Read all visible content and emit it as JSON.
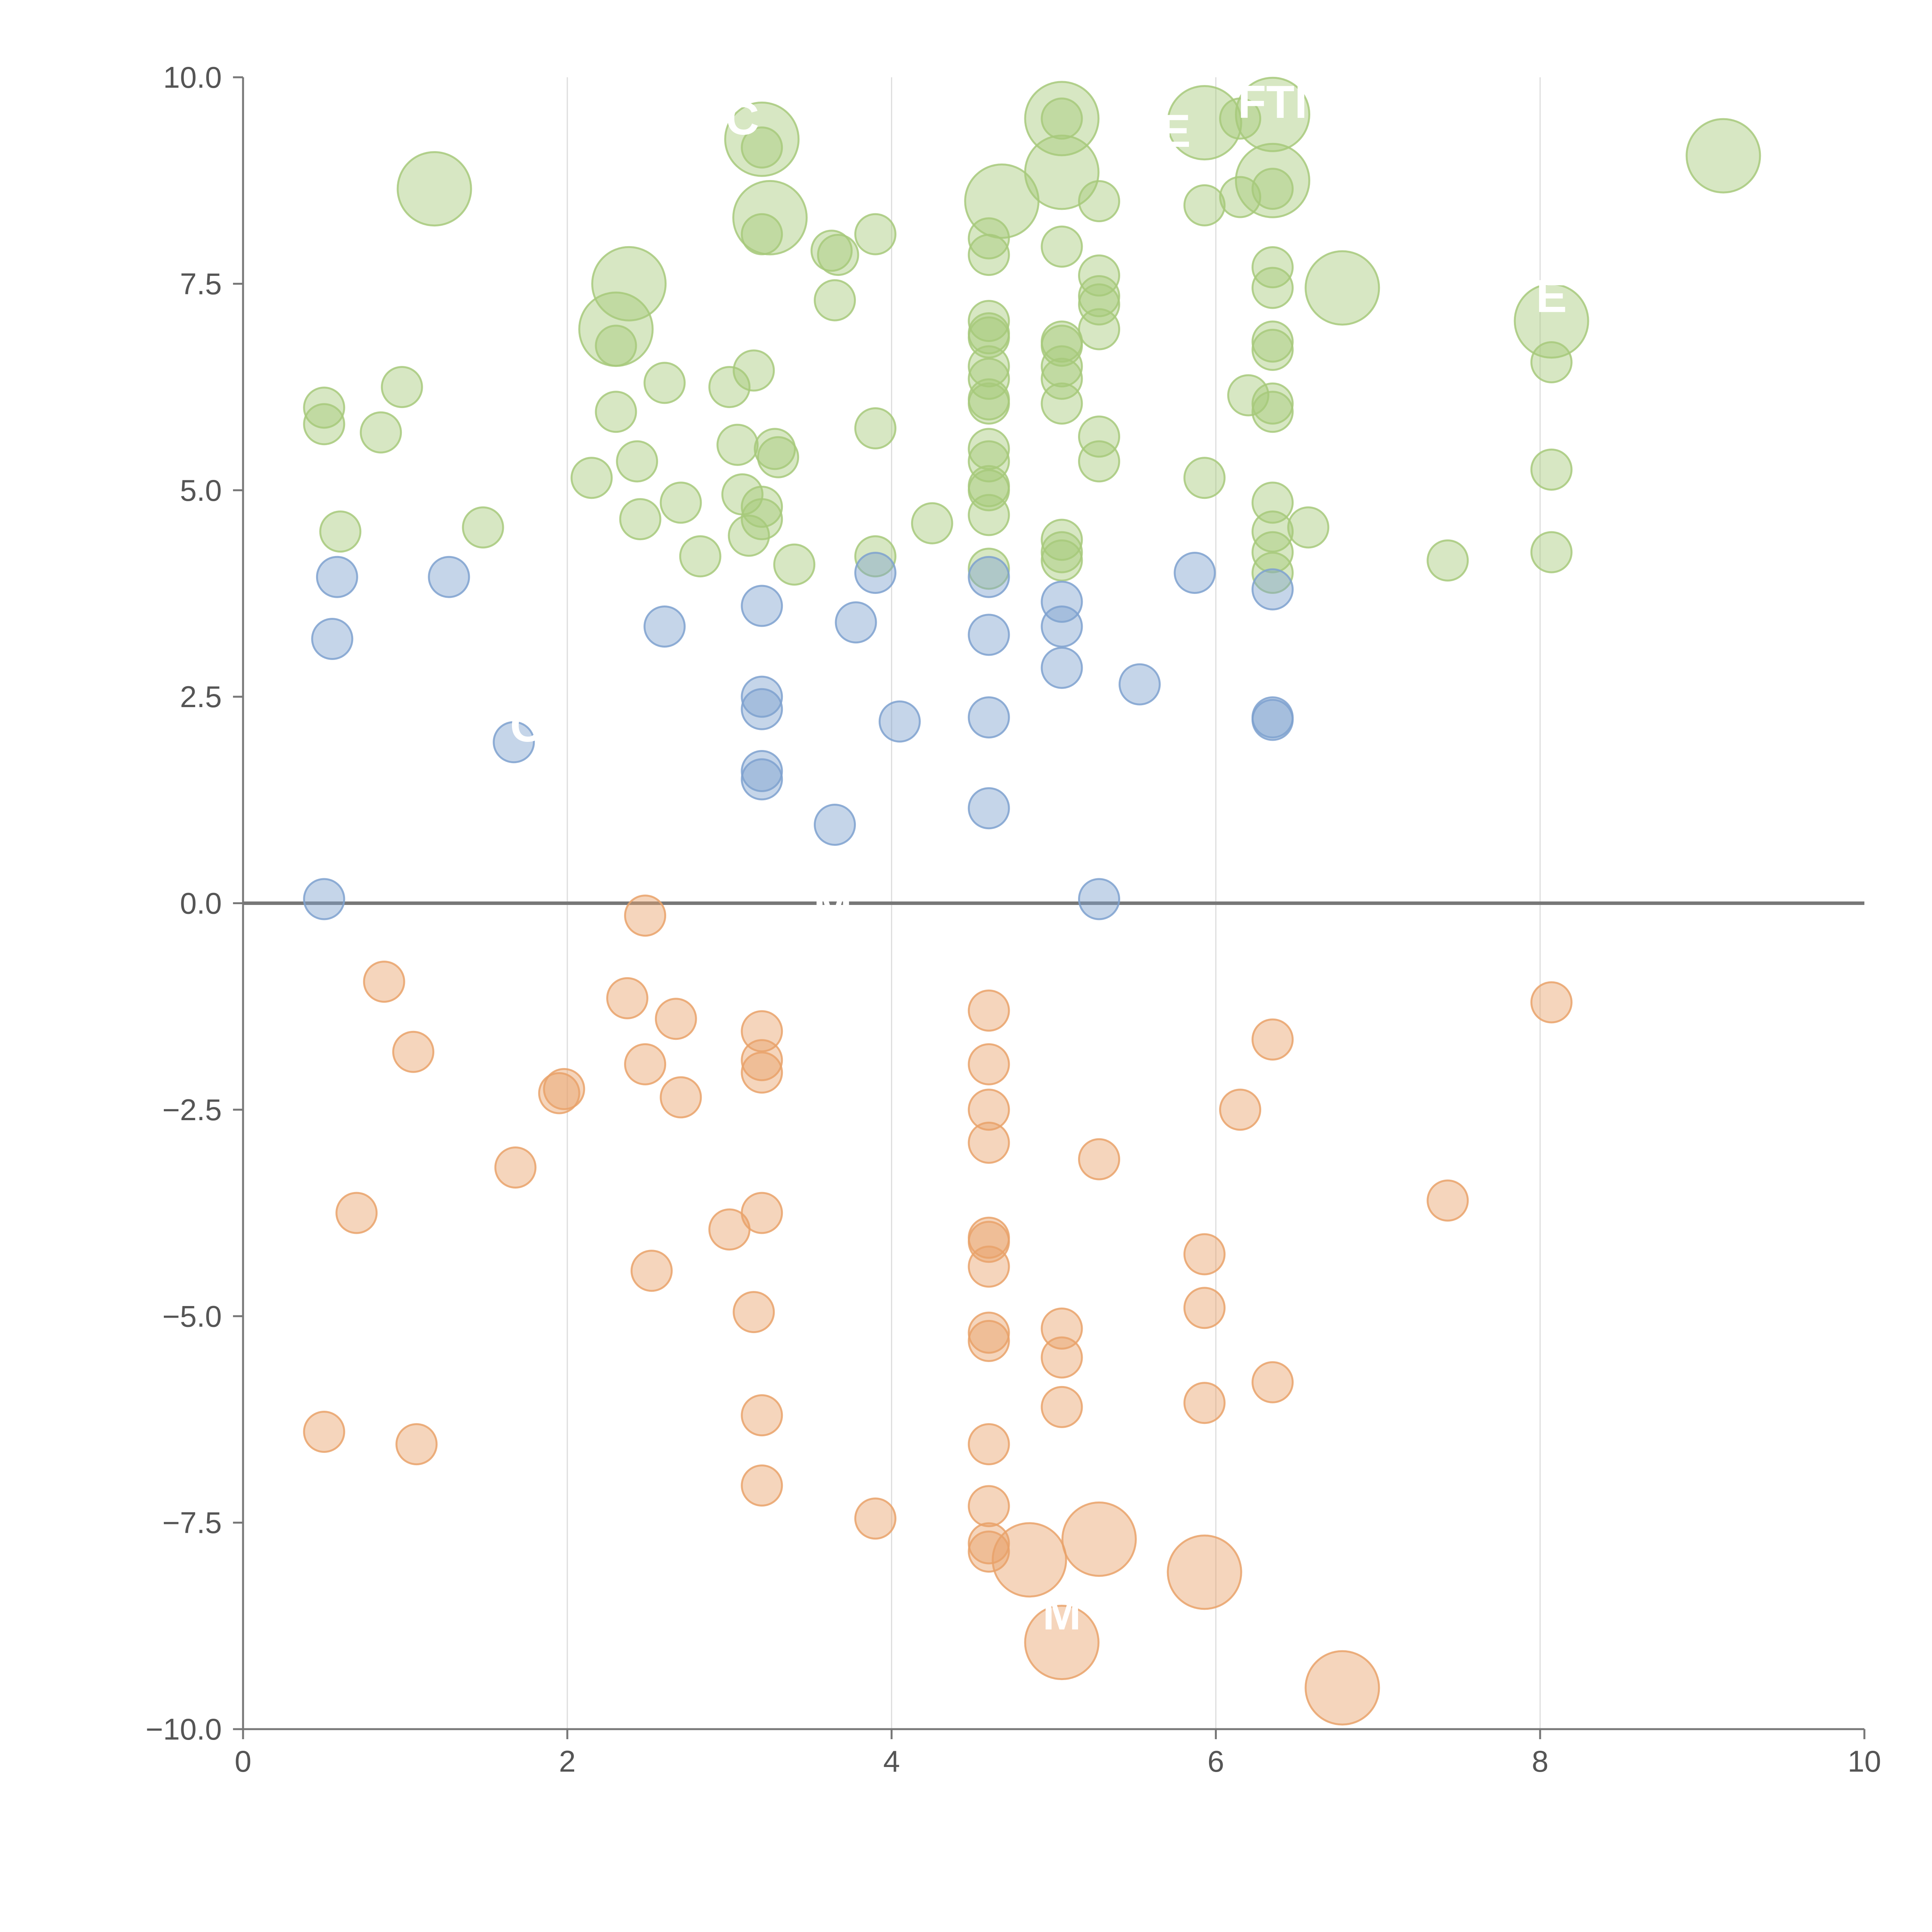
{
  "chart_data": {
    "type": "scatter",
    "title": "",
    "xlabel": "",
    "ylabel": "",
    "xlim": [
      0,
      10
    ],
    "ylim": [
      -10,
      10
    ],
    "x_ticks": [
      0,
      2,
      4,
      6,
      8,
      10
    ],
    "x_tick_labels": [
      "0",
      "2",
      "4",
      "6",
      "8",
      "10"
    ],
    "y_ticks": [
      -10,
      -7.5,
      -5,
      -2.5,
      0,
      2.5,
      5,
      7.5,
      10
    ],
    "y_tick_labels": [
      "−10.0",
      "−7.5",
      "−5.0",
      "−2.5",
      "0.0",
      "2.5",
      "5.0",
      "7.5",
      "10.0"
    ],
    "grid": "vertical",
    "reference_line_y": 0,
    "legend": "none",
    "colors": {
      "positive_high": "#a7c97b",
      "positive_low": "#7ea1cf",
      "negative": "#e9a26a",
      "axis": "#777777",
      "grid": "#dddddd",
      "zero_line": "#777777"
    },
    "series": [
      {
        "name": "green",
        "color": "#a7c97b",
        "points": [
          {
            "x": 0.5,
            "y": 6.0,
            "s": 1
          },
          {
            "x": 0.5,
            "y": 5.8,
            "s": 1
          },
          {
            "x": 0.6,
            "y": 4.5,
            "s": 1
          },
          {
            "x": 0.85,
            "y": 5.7,
            "s": 1
          },
          {
            "x": 0.98,
            "y": 6.25,
            "s": 1
          },
          {
            "x": 1.18,
            "y": 8.65,
            "s": 2
          },
          {
            "x": 1.48,
            "y": 4.55,
            "s": 1
          },
          {
            "x": 2.15,
            "y": 5.15,
            "s": 1
          },
          {
            "x": 2.3,
            "y": 6.95,
            "s": 2
          },
          {
            "x": 2.3,
            "y": 6.75,
            "s": 1
          },
          {
            "x": 2.3,
            "y": 5.95,
            "s": 1
          },
          {
            "x": 2.38,
            "y": 7.5,
            "s": 2
          },
          {
            "x": 2.43,
            "y": 5.35,
            "s": 1
          },
          {
            "x": 2.45,
            "y": 4.65,
            "s": 1
          },
          {
            "x": 2.6,
            "y": 6.3,
            "s": 1
          },
          {
            "x": 2.7,
            "y": 4.85,
            "s": 1
          },
          {
            "x": 2.82,
            "y": 4.2,
            "s": 1
          },
          {
            "x": 3.0,
            "y": 6.25,
            "s": 1
          },
          {
            "x": 3.05,
            "y": 5.55,
            "s": 1
          },
          {
            "x": 3.08,
            "y": 4.95,
            "s": 1
          },
          {
            "x": 3.12,
            "y": 4.45,
            "s": 1
          },
          {
            "x": 3.15,
            "y": 6.45,
            "s": 1
          },
          {
            "x": 3.2,
            "y": 9.25,
            "s": 2
          },
          {
            "x": 3.2,
            "y": 9.15,
            "s": 1
          },
          {
            "x": 3.2,
            "y": 8.1,
            "s": 1
          },
          {
            "x": 3.2,
            "y": 4.8,
            "s": 1
          },
          {
            "x": 3.2,
            "y": 4.65,
            "s": 1
          },
          {
            "x": 3.25,
            "y": 8.3,
            "s": 2
          },
          {
            "x": 3.28,
            "y": 5.5,
            "s": 1
          },
          {
            "x": 3.3,
            "y": 5.4,
            "s": 1
          },
          {
            "x": 3.4,
            "y": 4.1,
            "s": 1
          },
          {
            "x": 3.63,
            "y": 7.9,
            "s": 1
          },
          {
            "x": 3.65,
            "y": 7.3,
            "s": 1
          },
          {
            "x": 3.67,
            "y": 7.85,
            "s": 1
          },
          {
            "x": 3.9,
            "y": 8.1,
            "s": 1
          },
          {
            "x": 3.9,
            "y": 5.75,
            "s": 1
          },
          {
            "x": 3.9,
            "y": 4.2,
            "s": 1
          },
          {
            "x": 4.25,
            "y": 4.6,
            "s": 1
          },
          {
            "x": 4.6,
            "y": 8.05,
            "s": 1
          },
          {
            "x": 4.6,
            "y": 7.85,
            "s": 1
          },
          {
            "x": 4.6,
            "y": 7.05,
            "s": 1
          },
          {
            "x": 4.6,
            "y": 6.9,
            "s": 1
          },
          {
            "x": 4.6,
            "y": 6.85,
            "s": 1
          },
          {
            "x": 4.6,
            "y": 6.5,
            "s": 1
          },
          {
            "x": 4.6,
            "y": 6.35,
            "s": 1
          },
          {
            "x": 4.6,
            "y": 6.1,
            "s": 1
          },
          {
            "x": 4.6,
            "y": 6.05,
            "s": 1
          },
          {
            "x": 4.6,
            "y": 5.5,
            "s": 1
          },
          {
            "x": 4.6,
            "y": 5.35,
            "s": 1
          },
          {
            "x": 4.6,
            "y": 5.05,
            "s": 1
          },
          {
            "x": 4.6,
            "y": 5.0,
            "s": 1
          },
          {
            "x": 4.6,
            "y": 4.7,
            "s": 1
          },
          {
            "x": 4.6,
            "y": 4.05,
            "s": 1
          },
          {
            "x": 4.68,
            "y": 8.5,
            "s": 2
          },
          {
            "x": 5.05,
            "y": 9.5,
            "s": 2
          },
          {
            "x": 5.05,
            "y": 9.5,
            "s": 1
          },
          {
            "x": 5.05,
            "y": 8.85,
            "s": 2
          },
          {
            "x": 5.05,
            "y": 7.95,
            "s": 1
          },
          {
            "x": 5.05,
            "y": 6.8,
            "s": 1
          },
          {
            "x": 5.05,
            "y": 6.75,
            "s": 1
          },
          {
            "x": 5.05,
            "y": 6.5,
            "s": 1
          },
          {
            "x": 5.05,
            "y": 6.35,
            "s": 1
          },
          {
            "x": 5.05,
            "y": 6.05,
            "s": 1
          },
          {
            "x": 5.05,
            "y": 4.4,
            "s": 1
          },
          {
            "x": 5.05,
            "y": 4.25,
            "s": 1
          },
          {
            "x": 5.05,
            "y": 4.15,
            "s": 1
          },
          {
            "x": 5.28,
            "y": 8.5,
            "s": 1
          },
          {
            "x": 5.28,
            "y": 7.6,
            "s": 1
          },
          {
            "x": 5.28,
            "y": 7.35,
            "s": 1
          },
          {
            "x": 5.28,
            "y": 7.25,
            "s": 1
          },
          {
            "x": 5.28,
            "y": 6.95,
            "s": 1
          },
          {
            "x": 5.28,
            "y": 5.65,
            "s": 1
          },
          {
            "x": 5.28,
            "y": 5.35,
            "s": 1
          },
          {
            "x": 5.93,
            "y": 9.45,
            "s": 2
          },
          {
            "x": 5.93,
            "y": 8.45,
            "s": 1
          },
          {
            "x": 5.93,
            "y": 5.15,
            "s": 1
          },
          {
            "x": 6.15,
            "y": 9.5,
            "s": 1
          },
          {
            "x": 6.15,
            "y": 8.55,
            "s": 1
          },
          {
            "x": 6.2,
            "y": 6.15,
            "s": 1
          },
          {
            "x": 6.35,
            "y": 9.55,
            "s": 2
          },
          {
            "x": 6.35,
            "y": 8.75,
            "s": 2
          },
          {
            "x": 6.35,
            "y": 8.65,
            "s": 1
          },
          {
            "x": 6.35,
            "y": 7.7,
            "s": 1
          },
          {
            "x": 6.35,
            "y": 7.45,
            "s": 1
          },
          {
            "x": 6.35,
            "y": 6.8,
            "s": 1
          },
          {
            "x": 6.35,
            "y": 6.7,
            "s": 1
          },
          {
            "x": 6.35,
            "y": 6.05,
            "s": 1
          },
          {
            "x": 6.35,
            "y": 5.95,
            "s": 1
          },
          {
            "x": 6.35,
            "y": 4.85,
            "s": 1
          },
          {
            "x": 6.35,
            "y": 4.5,
            "s": 1
          },
          {
            "x": 6.35,
            "y": 4.25,
            "s": 1
          },
          {
            "x": 6.35,
            "y": 4.0,
            "s": 1
          },
          {
            "x": 6.57,
            "y": 4.55,
            "s": 1
          },
          {
            "x": 6.78,
            "y": 7.45,
            "s": 2
          },
          {
            "x": 7.43,
            "y": 4.15,
            "s": 1
          },
          {
            "x": 8.07,
            "y": 7.05,
            "s": 2
          },
          {
            "x": 8.07,
            "y": 6.55,
            "s": 1
          },
          {
            "x": 8.07,
            "y": 5.25,
            "s": 1
          },
          {
            "x": 8.07,
            "y": 4.25,
            "s": 1
          },
          {
            "x": 9.13,
            "y": 9.05,
            "s": 2
          }
        ]
      },
      {
        "name": "blue",
        "color": "#7ea1cf",
        "points": [
          {
            "x": 0.5,
            "y": 0.05,
            "s": 1
          },
          {
            "x": 0.55,
            "y": 3.2,
            "s": 1
          },
          {
            "x": 0.58,
            "y": 3.95,
            "s": 1
          },
          {
            "x": 1.27,
            "y": 3.95,
            "s": 1
          },
          {
            "x": 1.67,
            "y": 1.95,
            "s": 1
          },
          {
            "x": 2.6,
            "y": 3.35,
            "s": 1
          },
          {
            "x": 3.2,
            "y": 3.6,
            "s": 1
          },
          {
            "x": 3.2,
            "y": 2.5,
            "s": 1
          },
          {
            "x": 3.2,
            "y": 2.35,
            "s": 1
          },
          {
            "x": 3.2,
            "y": 1.6,
            "s": 1
          },
          {
            "x": 3.2,
            "y": 1.5,
            "s": 1
          },
          {
            "x": 3.65,
            "y": 0.95,
            "s": 1
          },
          {
            "x": 3.78,
            "y": 3.4,
            "s": 1
          },
          {
            "x": 3.9,
            "y": 4.0,
            "s": 1
          },
          {
            "x": 4.05,
            "y": 2.2,
            "s": 1
          },
          {
            "x": 4.6,
            "y": 3.95,
            "s": 1
          },
          {
            "x": 4.6,
            "y": 3.25,
            "s": 1
          },
          {
            "x": 4.6,
            "y": 2.25,
            "s": 1
          },
          {
            "x": 4.6,
            "y": 1.15,
            "s": 1
          },
          {
            "x": 5.05,
            "y": 3.65,
            "s": 1
          },
          {
            "x": 5.05,
            "y": 3.35,
            "s": 1
          },
          {
            "x": 5.05,
            "y": 2.85,
            "s": 1
          },
          {
            "x": 5.28,
            "y": 0.05,
            "s": 1
          },
          {
            "x": 5.53,
            "y": 2.65,
            "s": 1
          },
          {
            "x": 5.87,
            "y": 4.0,
            "s": 1
          },
          {
            "x": 6.35,
            "y": 3.8,
            "s": 1
          },
          {
            "x": 6.35,
            "y": 2.25,
            "s": 1
          },
          {
            "x": 6.35,
            "y": 2.22,
            "s": 1
          }
        ]
      },
      {
        "name": "orange",
        "color": "#e9a26a",
        "points": [
          {
            "x": 0.5,
            "y": -6.4,
            "s": 1
          },
          {
            "x": 0.7,
            "y": -3.75,
            "s": 1
          },
          {
            "x": 0.87,
            "y": -0.95,
            "s": 1
          },
          {
            "x": 1.05,
            "y": -1.8,
            "s": 1
          },
          {
            "x": 1.07,
            "y": -6.55,
            "s": 1
          },
          {
            "x": 1.68,
            "y": -3.2,
            "s": 1
          },
          {
            "x": 1.95,
            "y": -2.3,
            "s": 1
          },
          {
            "x": 1.98,
            "y": -2.25,
            "s": 1
          },
          {
            "x": 2.37,
            "y": -1.15,
            "s": 1
          },
          {
            "x": 2.48,
            "y": -1.95,
            "s": 1
          },
          {
            "x": 2.48,
            "y": -0.15,
            "s": 1
          },
          {
            "x": 2.52,
            "y": -4.45,
            "s": 1
          },
          {
            "x": 2.67,
            "y": -1.4,
            "s": 1
          },
          {
            "x": 2.7,
            "y": -2.35,
            "s": 1
          },
          {
            "x": 3.0,
            "y": -3.95,
            "s": 1
          },
          {
            "x": 3.15,
            "y": -4.95,
            "s": 1
          },
          {
            "x": 3.2,
            "y": -1.55,
            "s": 1
          },
          {
            "x": 3.2,
            "y": -1.9,
            "s": 1
          },
          {
            "x": 3.2,
            "y": -2.05,
            "s": 1
          },
          {
            "x": 3.2,
            "y": -3.75,
            "s": 1
          },
          {
            "x": 3.2,
            "y": -6.2,
            "s": 1
          },
          {
            "x": 3.2,
            "y": -7.05,
            "s": 1
          },
          {
            "x": 3.9,
            "y": -7.45,
            "s": 1
          },
          {
            "x": 4.6,
            "y": -1.3,
            "s": 1
          },
          {
            "x": 4.6,
            "y": -1.95,
            "s": 1
          },
          {
            "x": 4.6,
            "y": -2.5,
            "s": 1
          },
          {
            "x": 4.6,
            "y": -2.9,
            "s": 1
          },
          {
            "x": 4.6,
            "y": -4.05,
            "s": 1
          },
          {
            "x": 4.6,
            "y": -4.1,
            "s": 1
          },
          {
            "x": 4.6,
            "y": -4.4,
            "s": 1
          },
          {
            "x": 4.6,
            "y": -5.2,
            "s": 1
          },
          {
            "x": 4.6,
            "y": -5.3,
            "s": 1
          },
          {
            "x": 4.6,
            "y": -6.55,
            "s": 1
          },
          {
            "x": 4.6,
            "y": -7.3,
            "s": 1
          },
          {
            "x": 4.6,
            "y": -7.75,
            "s": 1
          },
          {
            "x": 4.6,
            "y": -7.85,
            "s": 1
          },
          {
            "x": 4.85,
            "y": -7.95,
            "s": 2
          },
          {
            "x": 5.05,
            "y": -5.15,
            "s": 1
          },
          {
            "x": 5.05,
            "y": -5.5,
            "s": 1
          },
          {
            "x": 5.05,
            "y": -6.1,
            "s": 1
          },
          {
            "x": 5.05,
            "y": -8.95,
            "s": 2
          },
          {
            "x": 5.28,
            "y": -3.1,
            "s": 1
          },
          {
            "x": 5.28,
            "y": -7.7,
            "s": 2
          },
          {
            "x": 5.93,
            "y": -4.25,
            "s": 1
          },
          {
            "x": 5.93,
            "y": -4.9,
            "s": 1
          },
          {
            "x": 5.93,
            "y": -6.05,
            "s": 1
          },
          {
            "x": 5.93,
            "y": -8.1,
            "s": 2
          },
          {
            "x": 6.15,
            "y": -2.5,
            "s": 1
          },
          {
            "x": 6.35,
            "y": -1.65,
            "s": 1
          },
          {
            "x": 6.35,
            "y": -5.8,
            "s": 1
          },
          {
            "x": 6.78,
            "y": -9.5,
            "s": 2
          },
          {
            "x": 7.43,
            "y": -3.6,
            "s": 1
          },
          {
            "x": 8.07,
            "y": -1.2,
            "s": 1
          }
        ]
      }
    ],
    "annotations": [
      {
        "text": "C",
        "x": 3.08,
        "y": 9.5
      },
      {
        "text": "E",
        "x": 5.75,
        "y": 9.35
      },
      {
        "text": "FTI",
        "x": 6.35,
        "y": 9.7
      },
      {
        "text": "E",
        "x": 8.07,
        "y": 7.35
      },
      {
        "text": "C",
        "x": 1.75,
        "y": 2.15
      },
      {
        "text": "- M",
        "x": 3.55,
        "y": -0.05
      },
      {
        "text": "M",
        "x": 5.05,
        "y": -8.6
      }
    ]
  }
}
